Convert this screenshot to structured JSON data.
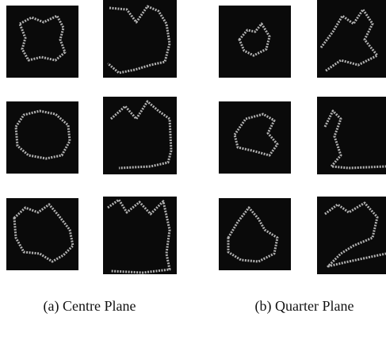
{
  "captions": {
    "a": "(a) Centre Plane",
    "b": "(b) Quarter Plane"
  }
}
